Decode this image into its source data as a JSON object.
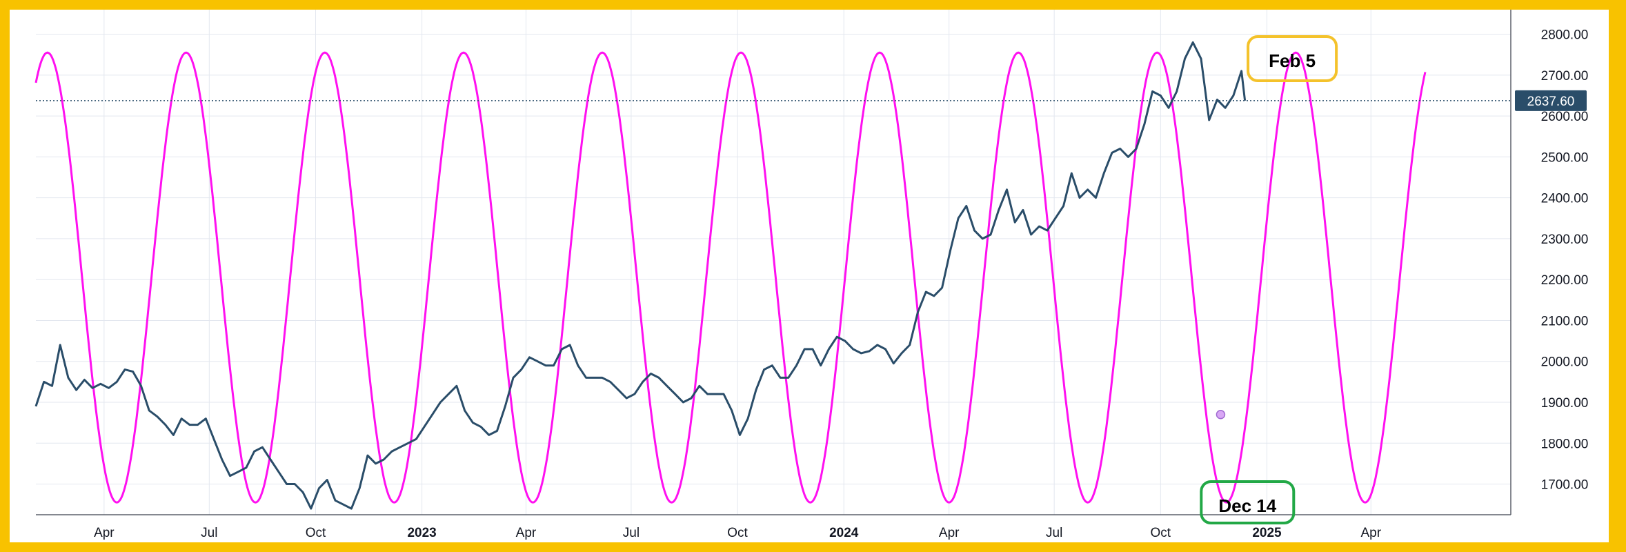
{
  "chart_data": {
    "type": "line",
    "y_axis": {
      "ticks": [
        "2800.00",
        "2700.00",
        "2600.00",
        "2500.00",
        "2400.00",
        "2300.00",
        "2200.00",
        "2100.00",
        "2000.00",
        "1900.00",
        "1800.00",
        "1700.00"
      ],
      "range": [
        1625,
        2860
      ]
    },
    "x_axis": {
      "ticks": [
        {
          "label": "Apr",
          "date": "2022-04-01",
          "bold": false
        },
        {
          "label": "Jul",
          "date": "2022-07-01",
          "bold": false
        },
        {
          "label": "Oct",
          "date": "2022-10-01",
          "bold": false
        },
        {
          "label": "2023",
          "date": "2023-01-01",
          "bold": true
        },
        {
          "label": "Apr",
          "date": "2023-04-01",
          "bold": false
        },
        {
          "label": "Jul",
          "date": "2023-07-01",
          "bold": false
        },
        {
          "label": "Oct",
          "date": "2023-10-01",
          "bold": false
        },
        {
          "label": "2024",
          "date": "2024-01-01",
          "bold": true
        },
        {
          "label": "Apr",
          "date": "2024-04-01",
          "bold": false
        },
        {
          "label": "Jul",
          "date": "2024-07-01",
          "bold": false
        },
        {
          "label": "Oct",
          "date": "2024-10-01",
          "bold": false
        },
        {
          "label": "2025",
          "date": "2025-01-01",
          "bold": true
        },
        {
          "label": "Apr",
          "date": "2025-04-01",
          "bold": false
        }
      ],
      "range": [
        "2022-02-01",
        "2025-07-31"
      ]
    },
    "last_price": "2637.60",
    "last_price_value": 2637.6,
    "grid": true,
    "series": [
      {
        "color": "#2a4d69",
        "points": [
          [
            "2022-02-01",
            1890
          ],
          [
            "2022-02-08",
            1950
          ],
          [
            "2022-02-15",
            1940
          ],
          [
            "2022-02-22",
            2040
          ],
          [
            "2022-03-01",
            1960
          ],
          [
            "2022-03-08",
            1930
          ],
          [
            "2022-03-15",
            1955
          ],
          [
            "2022-03-22",
            1935
          ],
          [
            "2022-03-29",
            1945
          ],
          [
            "2022-04-05",
            1935
          ],
          [
            "2022-04-12",
            1950
          ],
          [
            "2022-04-19",
            1980
          ],
          [
            "2022-04-26",
            1975
          ],
          [
            "2022-05-03",
            1940
          ],
          [
            "2022-05-10",
            1880
          ],
          [
            "2022-05-17",
            1865
          ],
          [
            "2022-05-24",
            1845
          ],
          [
            "2022-05-31",
            1820
          ],
          [
            "2022-06-07",
            1860
          ],
          [
            "2022-06-14",
            1845
          ],
          [
            "2022-06-21",
            1845
          ],
          [
            "2022-06-28",
            1860
          ],
          [
            "2022-07-05",
            1810
          ],
          [
            "2022-07-12",
            1760
          ],
          [
            "2022-07-19",
            1720
          ],
          [
            "2022-07-26",
            1730
          ],
          [
            "2022-08-02",
            1740
          ],
          [
            "2022-08-09",
            1780
          ],
          [
            "2022-08-16",
            1790
          ],
          [
            "2022-08-23",
            1760
          ],
          [
            "2022-08-30",
            1730
          ],
          [
            "2022-09-06",
            1700
          ],
          [
            "2022-09-13",
            1700
          ],
          [
            "2022-09-20",
            1680
          ],
          [
            "2022-09-27",
            1640
          ],
          [
            "2022-10-04",
            1690
          ],
          [
            "2022-10-11",
            1710
          ],
          [
            "2022-10-18",
            1660
          ],
          [
            "2022-10-25",
            1650
          ],
          [
            "2022-11-01",
            1640
          ],
          [
            "2022-11-08",
            1690
          ],
          [
            "2022-11-15",
            1770
          ],
          [
            "2022-11-22",
            1750
          ],
          [
            "2022-11-29",
            1760
          ],
          [
            "2022-12-06",
            1780
          ],
          [
            "2022-12-13",
            1790
          ],
          [
            "2022-12-20",
            1800
          ],
          [
            "2022-12-27",
            1810
          ],
          [
            "2023-01-03",
            1840
          ],
          [
            "2023-01-10",
            1870
          ],
          [
            "2023-01-17",
            1900
          ],
          [
            "2023-01-24",
            1920
          ],
          [
            "2023-01-31",
            1940
          ],
          [
            "2023-02-07",
            1880
          ],
          [
            "2023-02-14",
            1850
          ],
          [
            "2023-02-21",
            1840
          ],
          [
            "2023-02-28",
            1820
          ],
          [
            "2023-03-07",
            1830
          ],
          [
            "2023-03-14",
            1890
          ],
          [
            "2023-03-21",
            1960
          ],
          [
            "2023-03-28",
            1980
          ],
          [
            "2023-04-04",
            2010
          ],
          [
            "2023-04-11",
            2000
          ],
          [
            "2023-04-18",
            1990
          ],
          [
            "2023-04-25",
            1990
          ],
          [
            "2023-05-02",
            2030
          ],
          [
            "2023-05-09",
            2040
          ],
          [
            "2023-05-16",
            1990
          ],
          [
            "2023-05-23",
            1960
          ],
          [
            "2023-05-30",
            1960
          ],
          [
            "2023-06-06",
            1960
          ],
          [
            "2023-06-13",
            1950
          ],
          [
            "2023-06-20",
            1930
          ],
          [
            "2023-06-27",
            1910
          ],
          [
            "2023-07-04",
            1920
          ],
          [
            "2023-07-11",
            1950
          ],
          [
            "2023-07-18",
            1970
          ],
          [
            "2023-07-25",
            1960
          ],
          [
            "2023-08-01",
            1940
          ],
          [
            "2023-08-08",
            1920
          ],
          [
            "2023-08-15",
            1900
          ],
          [
            "2023-08-22",
            1910
          ],
          [
            "2023-08-29",
            1940
          ],
          [
            "2023-09-05",
            1920
          ],
          [
            "2023-09-12",
            1920
          ],
          [
            "2023-09-19",
            1920
          ],
          [
            "2023-09-26",
            1880
          ],
          [
            "2023-10-03",
            1820
          ],
          [
            "2023-10-10",
            1860
          ],
          [
            "2023-10-17",
            1930
          ],
          [
            "2023-10-24",
            1980
          ],
          [
            "2023-10-31",
            1990
          ],
          [
            "2023-11-07",
            1960
          ],
          [
            "2023-11-14",
            1960
          ],
          [
            "2023-11-21",
            1990
          ],
          [
            "2023-11-28",
            2030
          ],
          [
            "2023-12-05",
            2030
          ],
          [
            "2023-12-12",
            1990
          ],
          [
            "2023-12-19",
            2030
          ],
          [
            "2023-12-26",
            2060
          ],
          [
            "2024-01-02",
            2050
          ],
          [
            "2024-01-09",
            2030
          ],
          [
            "2024-01-16",
            2020
          ],
          [
            "2024-01-23",
            2025
          ],
          [
            "2024-01-30",
            2040
          ],
          [
            "2024-02-06",
            2030
          ],
          [
            "2024-02-13",
            1995
          ],
          [
            "2024-02-20",
            2020
          ],
          [
            "2024-02-27",
            2040
          ],
          [
            "2024-03-05",
            2120
          ],
          [
            "2024-03-12",
            2170
          ],
          [
            "2024-03-19",
            2160
          ],
          [
            "2024-03-26",
            2180
          ],
          [
            "2024-04-02",
            2270
          ],
          [
            "2024-04-09",
            2350
          ],
          [
            "2024-04-16",
            2380
          ],
          [
            "2024-04-23",
            2320
          ],
          [
            "2024-04-30",
            2300
          ],
          [
            "2024-05-07",
            2310
          ],
          [
            "2024-05-14",
            2370
          ],
          [
            "2024-05-21",
            2420
          ],
          [
            "2024-05-28",
            2340
          ],
          [
            "2024-06-04",
            2370
          ],
          [
            "2024-06-11",
            2310
          ],
          [
            "2024-06-18",
            2330
          ],
          [
            "2024-06-25",
            2320
          ],
          [
            "2024-07-02",
            2350
          ],
          [
            "2024-07-09",
            2380
          ],
          [
            "2024-07-16",
            2460
          ],
          [
            "2024-07-23",
            2400
          ],
          [
            "2024-07-30",
            2420
          ],
          [
            "2024-08-06",
            2400
          ],
          [
            "2024-08-13",
            2460
          ],
          [
            "2024-08-20",
            2510
          ],
          [
            "2024-08-27",
            2520
          ],
          [
            "2024-09-03",
            2500
          ],
          [
            "2024-09-10",
            2520
          ],
          [
            "2024-09-17",
            2580
          ],
          [
            "2024-09-24",
            2660
          ],
          [
            "2024-10-01",
            2650
          ],
          [
            "2024-10-08",
            2620
          ],
          [
            "2024-10-15",
            2660
          ],
          [
            "2024-10-22",
            2740
          ],
          [
            "2024-10-29",
            2780
          ],
          [
            "2024-11-05",
            2740
          ],
          [
            "2024-11-12",
            2590
          ],
          [
            "2024-11-19",
            2640
          ],
          [
            "2024-11-26",
            2620
          ],
          [
            "2024-12-03",
            2650
          ],
          [
            "2024-12-10",
            2710
          ],
          [
            "2024-12-13",
            2637.6
          ]
        ]
      },
      {
        "color": "#ff10f0",
        "type": "cycle",
        "period_days": 120,
        "peak_date": "2024-09-28",
        "amplitude": 550,
        "mean": 2205,
        "end": "2025-05-18",
        "points": []
      }
    ],
    "annotations": [
      {
        "text": "Feb 5",
        "date": "2025-02-05",
        "border": "#f4c22b"
      },
      {
        "text": "Dec 14",
        "date": "2024-12-14",
        "border": "#22a846"
      }
    ],
    "marker": {
      "date": "2024-11-22",
      "value": 1870,
      "color": "#d9a7f5"
    }
  }
}
